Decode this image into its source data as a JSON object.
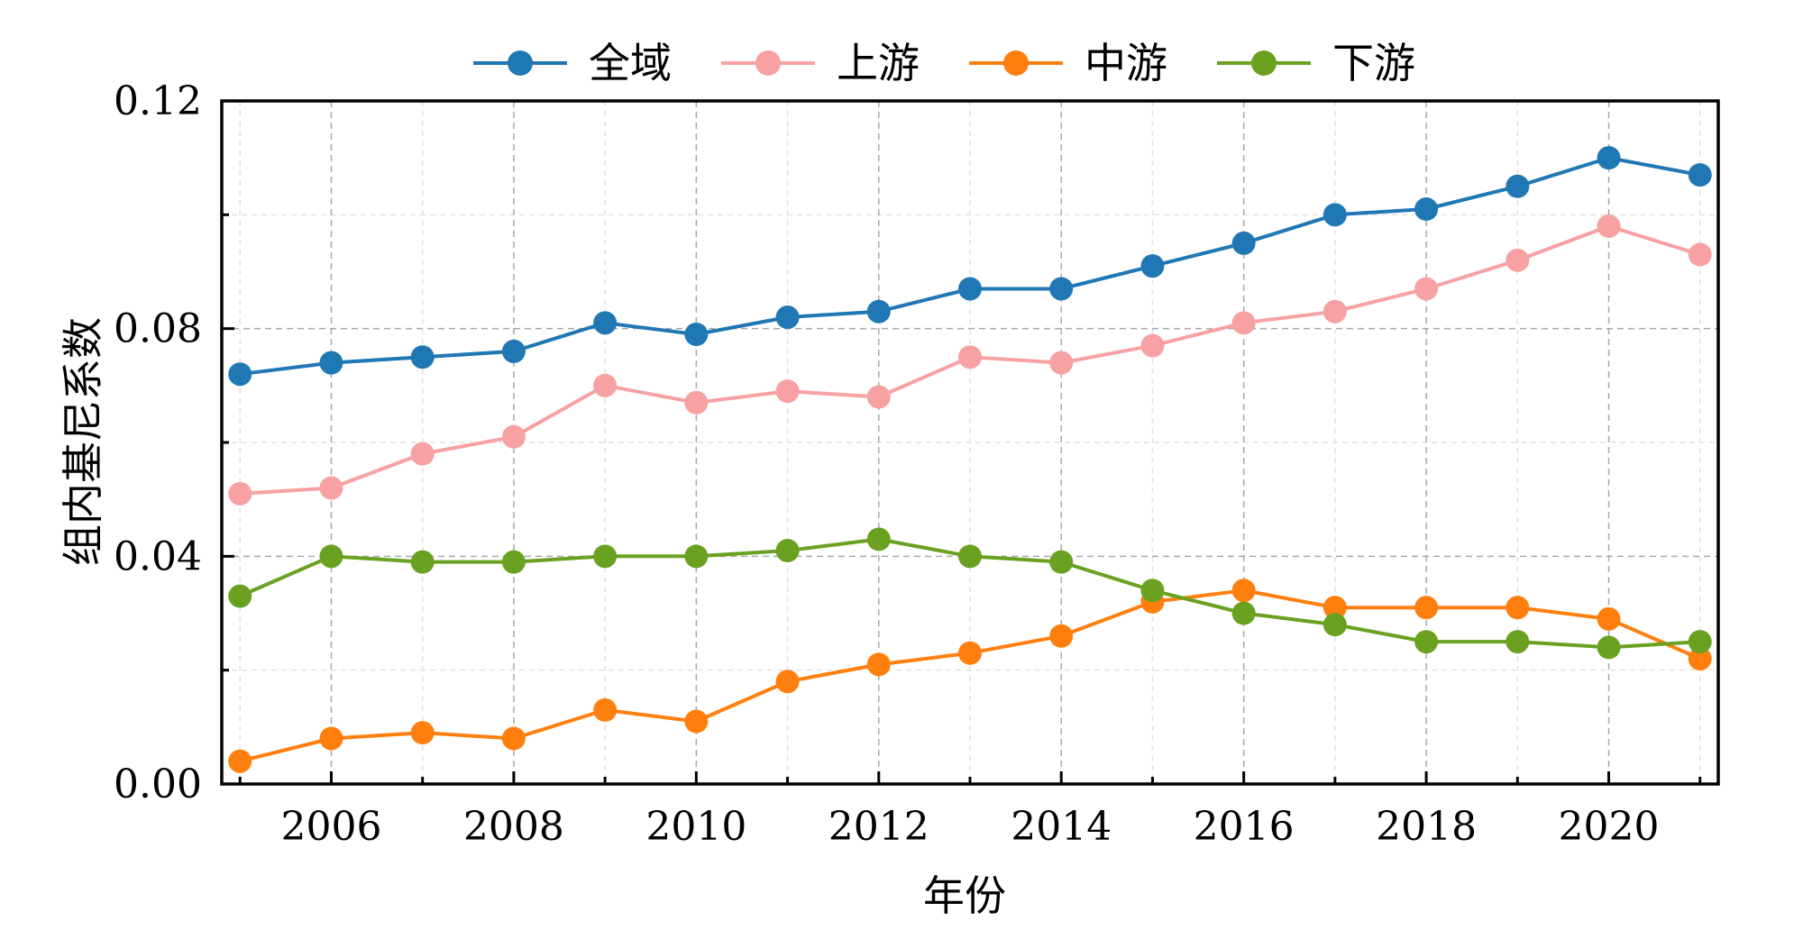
{
  "chart_data": {
    "type": "line",
    "title": "",
    "xlabel": "年份",
    "ylabel": "组内基尼系数",
    "x": [
      2005,
      2006,
      2007,
      2008,
      2009,
      2010,
      2011,
      2012,
      2013,
      2014,
      2015,
      2016,
      2017,
      2018,
      2019,
      2020,
      2021
    ],
    "xlim": [
      2004.8,
      2021.2
    ],
    "ylim": [
      0.0,
      0.12
    ],
    "xticks": [
      2006,
      2008,
      2010,
      2012,
      2014,
      2016,
      2018,
      2020
    ],
    "xtick_labels": [
      "2006",
      "2008",
      "2010",
      "2012",
      "2014",
      "2016",
      "2018",
      "2020"
    ],
    "yticks": [
      0.0,
      0.04,
      0.08,
      0.12
    ],
    "ytick_labels": [
      "0.00",
      "0.04",
      "0.08",
      "0.12"
    ],
    "grid": true,
    "legend_position": "top-center",
    "series": [
      {
        "name": "全域",
        "color": "#1f77b4",
        "values": [
          0.072,
          0.074,
          0.075,
          0.076,
          0.081,
          0.079,
          0.082,
          0.083,
          0.087,
          0.087,
          0.091,
          0.095,
          0.1,
          0.101,
          0.105,
          0.11,
          0.107
        ]
      },
      {
        "name": "上游",
        "color": "#f7a1a3",
        "values": [
          0.051,
          0.052,
          0.058,
          0.061,
          0.07,
          0.067,
          0.069,
          0.068,
          0.075,
          0.074,
          0.077,
          0.081,
          0.083,
          0.087,
          0.092,
          0.098,
          0.093
        ]
      },
      {
        "name": "中游",
        "color": "#ff7f0e",
        "values": [
          0.004,
          0.008,
          0.009,
          0.008,
          0.013,
          0.011,
          0.018,
          0.021,
          0.023,
          0.026,
          0.032,
          0.034,
          0.031,
          0.031,
          0.031,
          0.029,
          0.022
        ]
      },
      {
        "name": "下游",
        "color": "#6aa121",
        "values": [
          0.033,
          0.04,
          0.039,
          0.039,
          0.04,
          0.04,
          0.041,
          0.043,
          0.04,
          0.039,
          0.034,
          0.03,
          0.028,
          0.025,
          0.025,
          0.024,
          0.025
        ]
      }
    ]
  }
}
